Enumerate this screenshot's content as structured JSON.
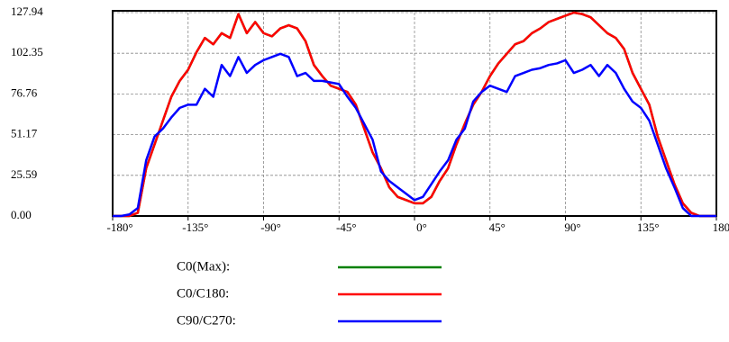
{
  "chart_data": {
    "type": "line",
    "x": [
      -180,
      -175,
      -170,
      -165,
      -160,
      -155,
      -150,
      -145,
      -140,
      -135,
      -130,
      -125,
      -120,
      -115,
      -110,
      -105,
      -100,
      -95,
      -90,
      -85,
      -80,
      -75,
      -70,
      -65,
      -60,
      -55,
      -50,
      -45,
      -40,
      -35,
      -30,
      -25,
      -20,
      -15,
      -10,
      -5,
      0,
      5,
      10,
      15,
      20,
      25,
      30,
      35,
      40,
      45,
      50,
      55,
      60,
      65,
      70,
      75,
      80,
      85,
      90,
      95,
      100,
      105,
      110,
      115,
      120,
      125,
      130,
      135,
      140,
      145,
      150,
      155,
      160,
      165,
      170,
      175,
      180
    ],
    "series": [
      {
        "name": "C0(Max):",
        "color": "#008000",
        "values": [
          0,
          0,
          0,
          2,
          30,
          45,
          60,
          75,
          85,
          92,
          103,
          112,
          108,
          115,
          112,
          127,
          115,
          122,
          115,
          113,
          118,
          120,
          118,
          110,
          95,
          88,
          82,
          80,
          78,
          70,
          55,
          40,
          30,
          18,
          12,
          10,
          8,
          8,
          12,
          22,
          30,
          45,
          58,
          70,
          78,
          88,
          96,
          102,
          108,
          110,
          115,
          118,
          122,
          124,
          126,
          127.94,
          127,
          125,
          120,
          115,
          112,
          105,
          90,
          80,
          70,
          50,
          35,
          20,
          8,
          2,
          0,
          0,
          0
        ]
      },
      {
        "name": "C0/C180:",
        "color": "#ff0000",
        "values": [
          0,
          0,
          0,
          2,
          30,
          45,
          60,
          75,
          85,
          92,
          103,
          112,
          108,
          115,
          112,
          127,
          115,
          122,
          115,
          113,
          118,
          120,
          118,
          110,
          95,
          88,
          82,
          80,
          78,
          70,
          55,
          40,
          30,
          18,
          12,
          10,
          8,
          8,
          12,
          22,
          30,
          45,
          58,
          70,
          78,
          88,
          96,
          102,
          108,
          110,
          115,
          118,
          122,
          124,
          126,
          127.94,
          127,
          125,
          120,
          115,
          112,
          105,
          90,
          80,
          70,
          50,
          35,
          20,
          8,
          2,
          0,
          0,
          0
        ]
      },
      {
        "name": "C90/C270:",
        "color": "#0000ff",
        "values": [
          0,
          0,
          1,
          5,
          35,
          50,
          55,
          62,
          68,
          70,
          70,
          80,
          75,
          95,
          88,
          100,
          90,
          95,
          98,
          100,
          102,
          100,
          88,
          90,
          85,
          85,
          84,
          83,
          75,
          68,
          58,
          48,
          28,
          22,
          18,
          14,
          10,
          12,
          20,
          28,
          35,
          48,
          55,
          72,
          78,
          82,
          80,
          78,
          88,
          90,
          92,
          93,
          95,
          96,
          98,
          90,
          92,
          95,
          88,
          95,
          90,
          80,
          72,
          68,
          60,
          45,
          30,
          18,
          5,
          0,
          0,
          0,
          0
        ]
      }
    ],
    "xlim": [
      -180,
      180
    ],
    "xticks": [
      {
        "value": -180,
        "label": "-180°"
      },
      {
        "value": -135,
        "label": "-135°"
      },
      {
        "value": -90,
        "label": "-90°"
      },
      {
        "value": -45,
        "label": "-45°"
      },
      {
        "value": 0,
        "label": "0°"
      },
      {
        "value": 45,
        "label": "45°"
      },
      {
        "value": 90,
        "label": "90°"
      },
      {
        "value": 135,
        "label": "135°"
      },
      {
        "value": 180,
        "label": "180°"
      }
    ],
    "ylim": [
      0,
      127.94
    ],
    "yticks": [
      {
        "value": 0,
        "label": "0.00"
      },
      25.59,
      51.17,
      76.76,
      102.35,
      127.94
    ],
    "grid": true
  }
}
